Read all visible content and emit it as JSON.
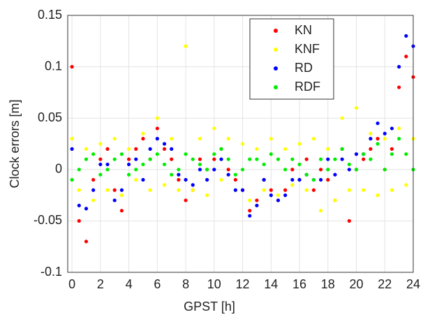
{
  "chart_data": {
    "type": "scatter",
    "x_label": "GPST [h]",
    "y_label": "Clock errors [m]",
    "x": [
      0,
      0.5,
      1,
      1.5,
      2,
      2.5,
      3,
      3.5,
      4,
      4.5,
      5,
      5.5,
      6,
      6.5,
      7,
      7.5,
      8,
      8.5,
      9,
      9.5,
      10,
      10.5,
      11,
      11.5,
      12,
      12.5,
      13,
      13.5,
      14,
      14.5,
      15,
      15.5,
      16,
      16.5,
      17,
      17.5,
      18,
      18.5,
      19,
      19.5,
      20,
      20.5,
      21,
      21.5,
      22,
      22.5,
      23,
      23.5,
      24
    ],
    "series": [
      {
        "name": "KN",
        "color": "#ff0000",
        "values": [
          0.1,
          -0.05,
          -0.07,
          -0.01,
          0.01,
          0.02,
          -0.02,
          -0.04,
          0.01,
          0.02,
          0.03,
          0.01,
          0.04,
          0.02,
          0.01,
          -0.01,
          -0.03,
          -0.02,
          0.01,
          0.0,
          0.01,
          0.02,
          0.0,
          -0.01,
          -0.02,
          -0.04,
          -0.03,
          -0.01,
          -0.02,
          -0.03,
          -0.02,
          0.0,
          -0.01,
          0.01,
          -0.02,
          0.0,
          -0.01,
          -0.03,
          0.02,
          -0.05,
          0.0,
          0.01,
          0.02,
          0.03,
          0.0,
          0.02,
          0.08,
          0.11,
          0.09
        ]
      },
      {
        "name": "KNF",
        "color": "#ffff00",
        "values": [
          0.03,
          -0.02,
          0.02,
          -0.03,
          0.025,
          -0.02,
          0.03,
          -0.025,
          0.02,
          -0.01,
          0.035,
          -0.02,
          0.05,
          -0.015,
          0.03,
          -0.02,
          0.12,
          -0.02,
          0.03,
          -0.025,
          0.04,
          -0.01,
          0.03,
          -0.02,
          0.025,
          -0.03,
          0.02,
          -0.02,
          0.03,
          -0.025,
          0.02,
          -0.015,
          0.025,
          -0.02,
          0.03,
          -0.04,
          0.02,
          -0.03,
          0.05,
          -0.02,
          0.06,
          -0.02,
          0.035,
          -0.025,
          0.03,
          -0.02,
          0.04,
          -0.015,
          0.03
        ]
      },
      {
        "name": "RD",
        "color": "#0000ff",
        "values": [
          0.02,
          -0.035,
          -0.038,
          -0.02,
          0.005,
          0.005,
          -0.03,
          -0.02,
          0.005,
          0.01,
          -0.01,
          0.02,
          0.03,
          0.025,
          0.02,
          -0.005,
          -0.01,
          -0.015,
          0.0,
          -0.01,
          0.0,
          0.01,
          -0.005,
          -0.02,
          -0.02,
          -0.045,
          -0.035,
          -0.01,
          -0.025,
          -0.03,
          -0.025,
          -0.01,
          -0.01,
          -0.005,
          -0.01,
          -0.01,
          0.01,
          -0.005,
          0.01,
          0.0,
          0.015,
          0.015,
          0.03,
          0.045,
          0.035,
          0.04,
          0.1,
          0.13,
          0.12
        ]
      },
      {
        "name": "RDF",
        "color": "#00ee00",
        "values": [
          -0.01,
          0.0,
          0.01,
          0.015,
          -0.005,
          0.0,
          0.01,
          0.015,
          -0.005,
          0.0,
          0.005,
          0.01,
          0.015,
          0.005,
          -0.005,
          0.0,
          0.015,
          0.01,
          0.005,
          0.0,
          0.015,
          0.02,
          0.01,
          -0.005,
          0.0,
          0.01,
          0.01,
          0.005,
          0.015,
          0.01,
          0.0,
          0.01,
          0.005,
          -0.005,
          -0.01,
          0.01,
          0.0,
          0.01,
          0.02,
          0.005,
          0.0,
          0.015,
          0.01,
          0.025,
          0.0,
          0.015,
          0.03,
          0.015,
          0.0
        ]
      }
    ],
    "xlim": [
      -0.3,
      24
    ],
    "xticks": [
      0,
      2,
      4,
      6,
      8,
      10,
      12,
      14,
      16,
      18,
      20,
      22,
      24
    ],
    "ylim": [
      -0.1,
      0.15
    ],
    "yticks": [
      -0.1,
      -0.05,
      0,
      0.05,
      0.1,
      0.15
    ],
    "grid": true
  }
}
